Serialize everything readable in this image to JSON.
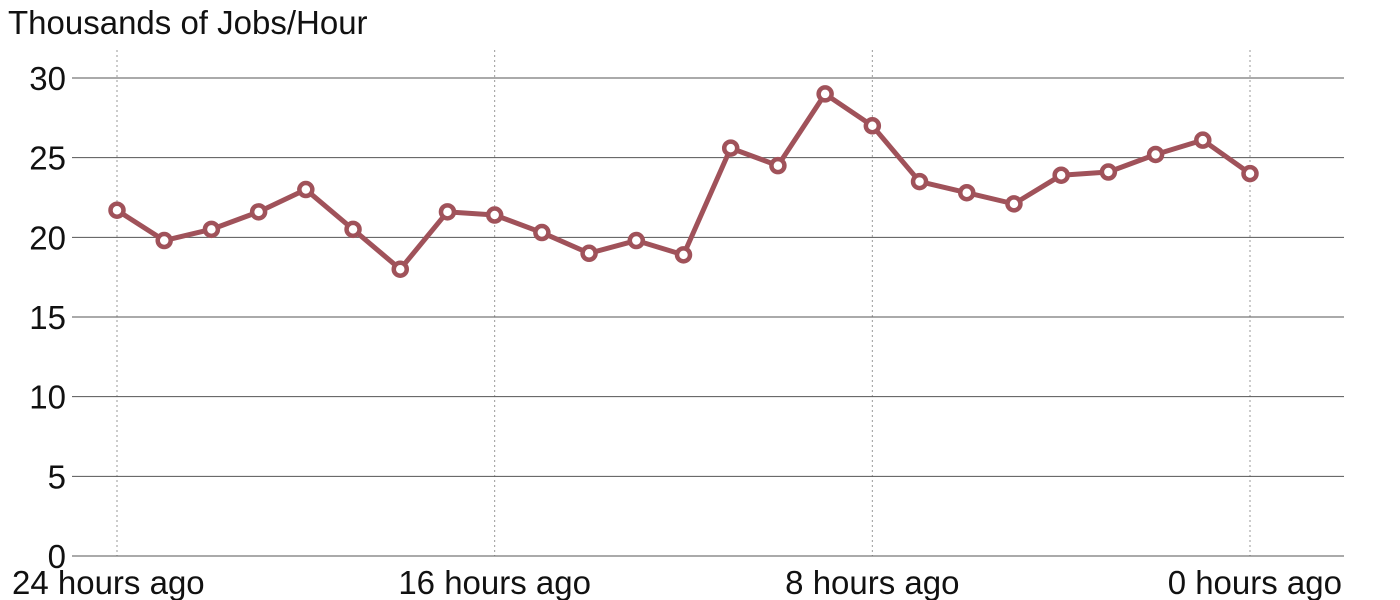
{
  "chart_data": {
    "type": "line",
    "title": "Thousands of Jobs/Hour",
    "xlabel": "",
    "ylabel": "",
    "x_unit": "hours ago",
    "x_reversed": true,
    "xlim": [
      24,
      -2
    ],
    "ylim": [
      0,
      30
    ],
    "y_ticks": [
      0,
      5,
      10,
      15,
      20,
      25,
      30
    ],
    "y_tick_labels": [
      "0",
      "5",
      "10",
      "15",
      "20",
      "25",
      "30"
    ],
    "x_ticks": [
      24,
      16,
      8,
      0
    ],
    "x_tick_labels": [
      "24 hours ago",
      "16 hours ago",
      "8 hours ago",
      "0 hours ago"
    ],
    "grid": {
      "horizontal": true,
      "vertical_dotted": true
    },
    "series": [
      {
        "color": "#a0525a",
        "marker": "open-circle",
        "x": [
          24,
          23,
          22,
          21,
          20,
          19,
          18,
          17,
          16,
          15,
          14,
          13,
          12,
          11,
          10,
          9,
          8,
          7,
          6,
          5,
          4,
          3,
          2,
          1,
          0
        ],
        "y": [
          21.7,
          19.8,
          20.5,
          21.6,
          23.0,
          20.5,
          18.0,
          21.6,
          21.4,
          20.3,
          19.0,
          19.8,
          18.9,
          25.6,
          24.5,
          29.0,
          27.0,
          23.5,
          22.8,
          22.1,
          23.9,
          24.1,
          25.2,
          26.1,
          24.0
        ]
      }
    ]
  }
}
